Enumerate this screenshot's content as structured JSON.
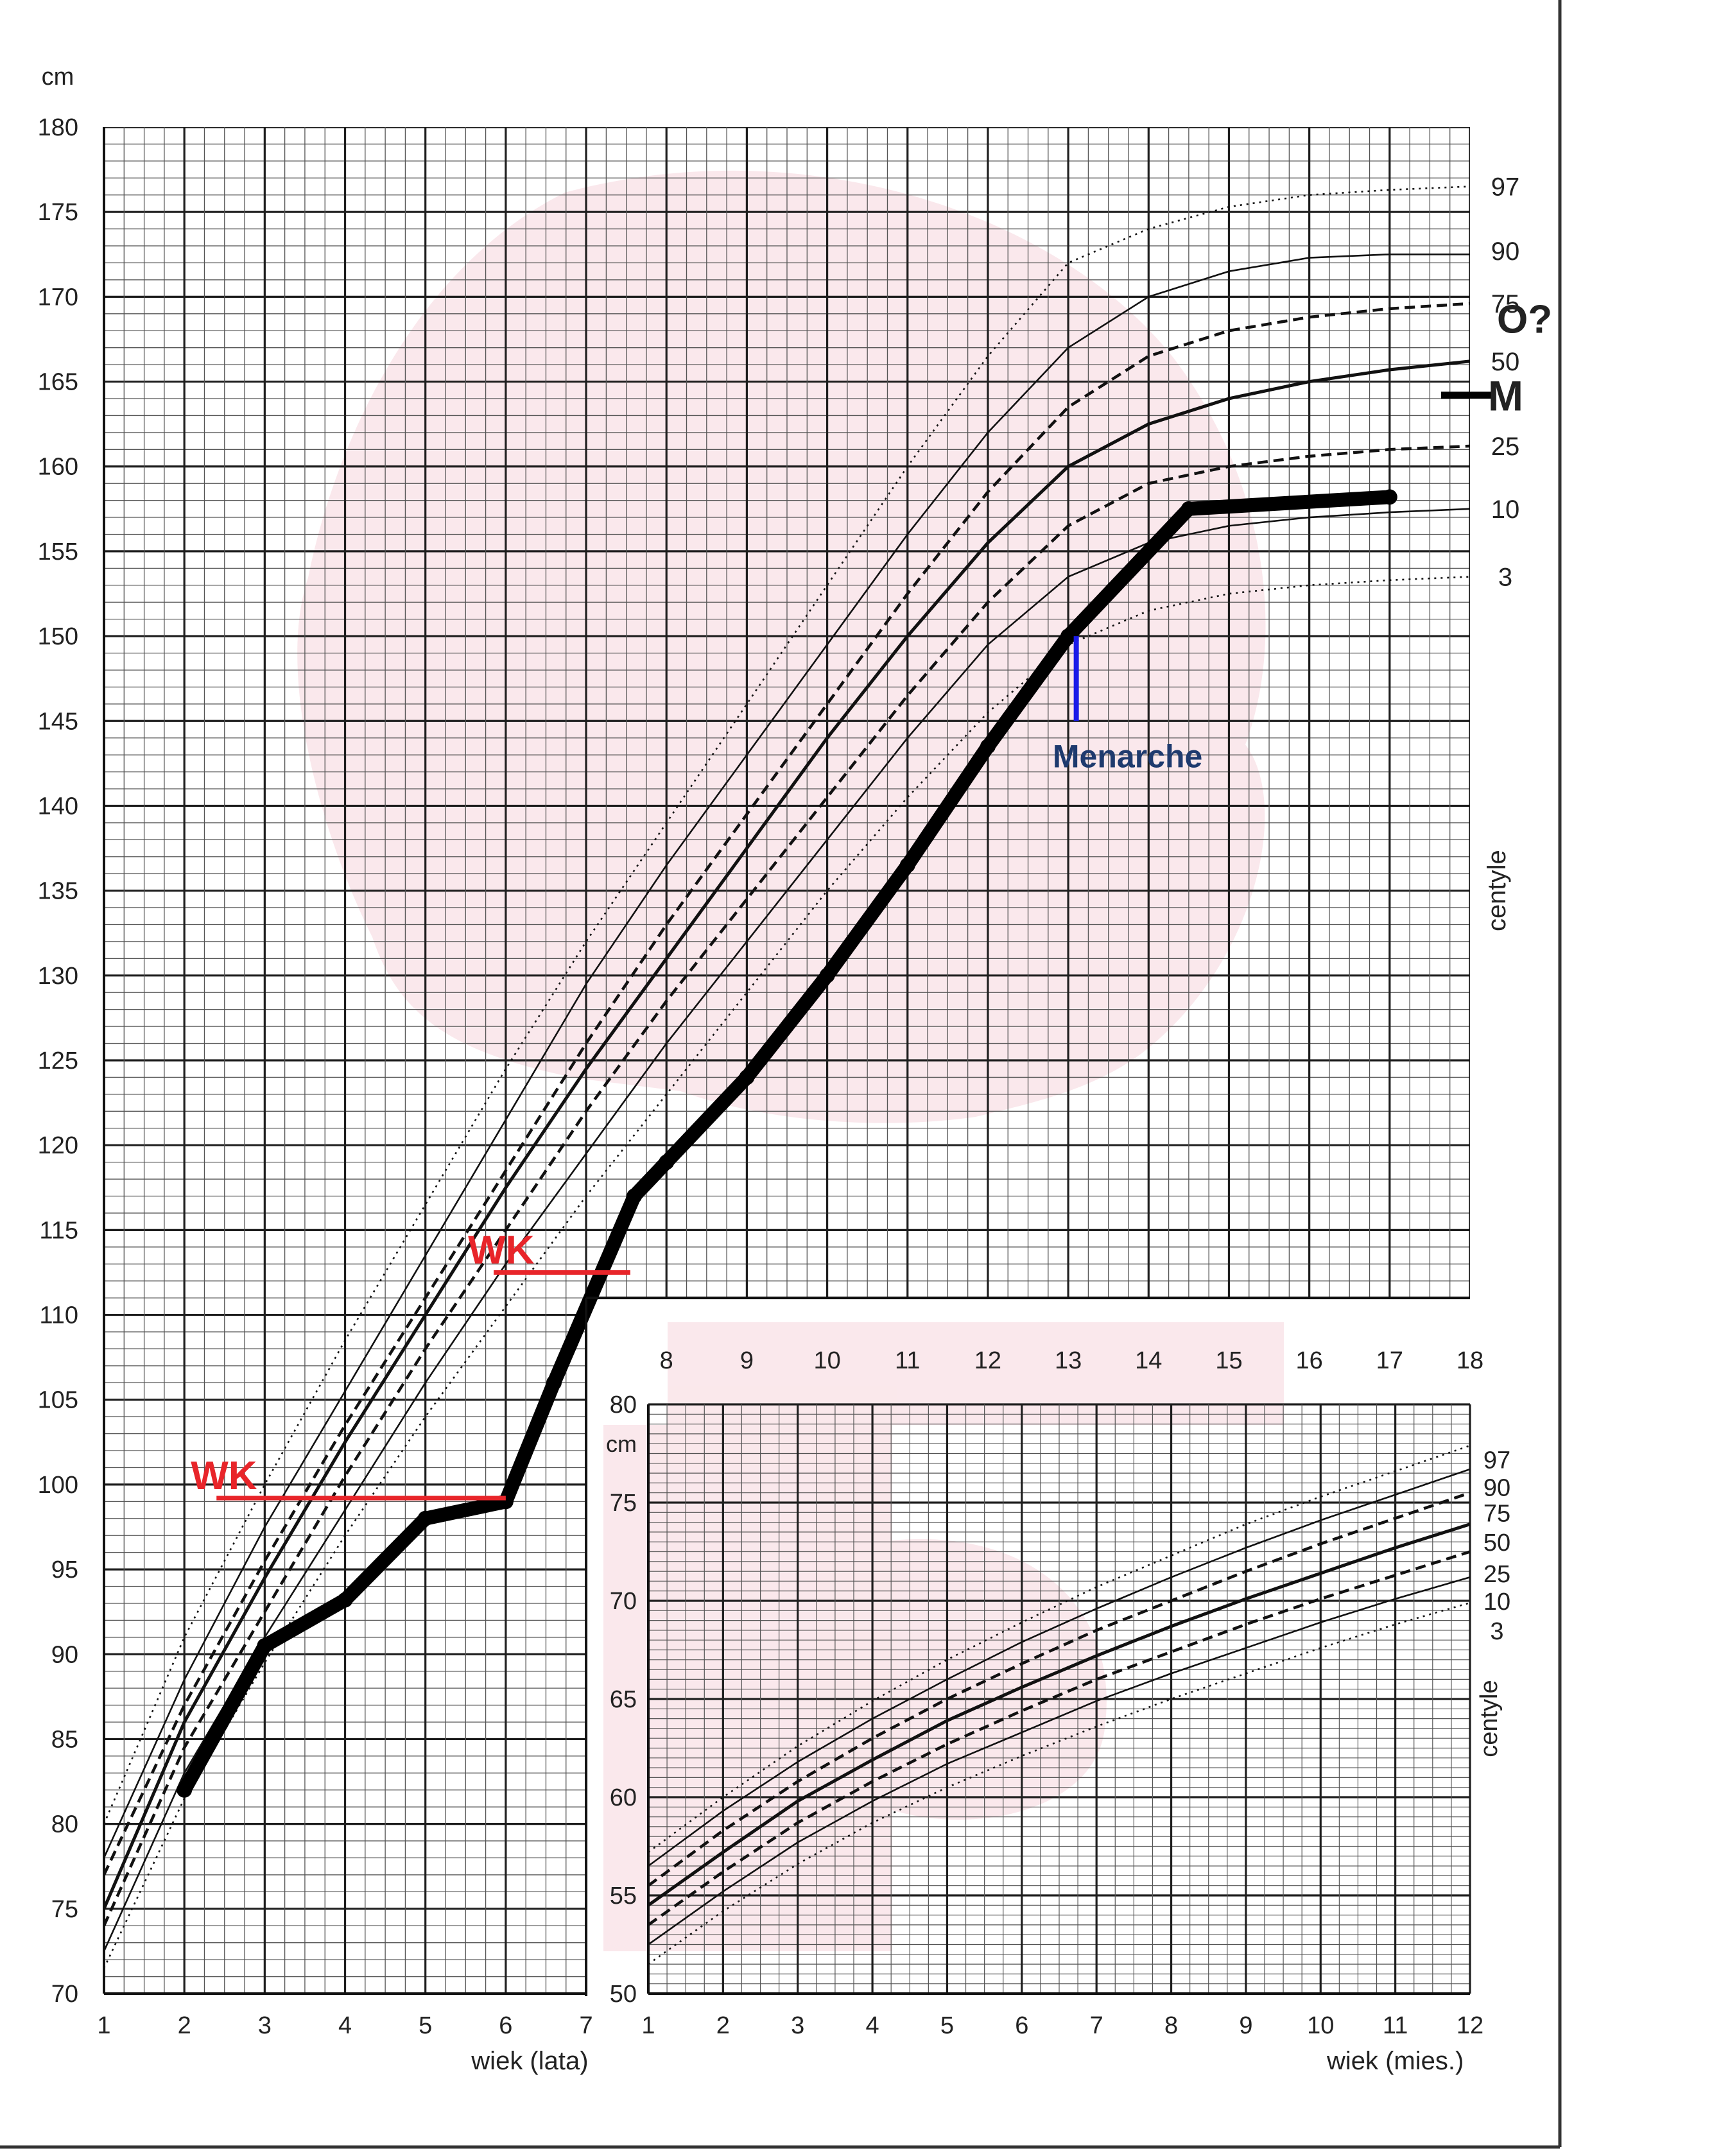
{
  "chart_data": [
    {
      "type": "line",
      "title": "",
      "ylabel": "cm",
      "xlabel": "wiek (lata)",
      "side_label": "centyle",
      "xlim": [
        1,
        18
      ],
      "ylim": [
        70,
        180
      ],
      "xticks": [
        "1",
        "2",
        "3",
        "4",
        "5",
        "6",
        "7",
        "8",
        "9",
        "10",
        "11",
        "12",
        "13",
        "14",
        "15",
        "16",
        "17",
        "18"
      ],
      "yticks": [
        "70",
        "75",
        "80",
        "85",
        "90",
        "95",
        "100",
        "105",
        "110",
        "115",
        "120",
        "125",
        "130",
        "135",
        "140",
        "145",
        "150",
        "155",
        "160",
        "165",
        "170",
        "175",
        "180"
      ],
      "grid": true,
      "centile_labels": [
        {
          "text": "97",
          "y": 176.5
        },
        {
          "text": "90",
          "y": 172.7
        },
        {
          "text": "75",
          "y": 169.6
        },
        {
          "text": "50",
          "y": 166.2
        },
        {
          "text": "25",
          "y": 161.2
        },
        {
          "text": "10",
          "y": 157.5
        },
        {
          "text": "3",
          "y": 153.5
        }
      ],
      "series": [
        {
          "centile": "97",
          "style": "dotted",
          "x": [
            1,
            2,
            3,
            4,
            5,
            6,
            7,
            8,
            9,
            10,
            11,
            12,
            13,
            14,
            15,
            16,
            17,
            18
          ],
          "y": [
            80,
            91,
            100,
            108.5,
            116.5,
            124.5,
            132,
            139,
            146,
            153,
            160,
            166.5,
            172,
            174,
            175.3,
            176,
            176.3,
            176.5
          ]
        },
        {
          "centile": "90",
          "style": "solid",
          "x": [
            1,
            2,
            3,
            4,
            5,
            6,
            7,
            8,
            9,
            10,
            11,
            12,
            13,
            14,
            15,
            16,
            17,
            18
          ],
          "y": [
            78,
            88.5,
            97.5,
            105.5,
            113.5,
            121.5,
            129.5,
            136.5,
            143,
            149.5,
            156,
            162,
            167,
            170,
            171.5,
            172.3,
            172.5,
            172.5
          ]
        },
        {
          "centile": "75",
          "style": "dashed",
          "x": [
            1,
            2,
            3,
            4,
            5,
            6,
            7,
            8,
            9,
            10,
            11,
            12,
            13,
            14,
            15,
            16,
            17,
            18
          ],
          "y": [
            77,
            87,
            95.5,
            103.5,
            111,
            118.5,
            126,
            133,
            139.5,
            146,
            152.5,
            158.5,
            163.5,
            166.5,
            168,
            168.8,
            169.3,
            169.6
          ]
        },
        {
          "centile": "50",
          "style": "solid-bold",
          "x": [
            1,
            2,
            3,
            4,
            5,
            6,
            7,
            8,
            9,
            10,
            11,
            12,
            13,
            14,
            15,
            16,
            17,
            18
          ],
          "y": [
            75,
            86,
            94.5,
            102.5,
            110,
            117.5,
            124.5,
            131,
            137.5,
            144,
            150,
            155.5,
            160,
            162.5,
            164,
            165,
            165.7,
            166.2
          ]
        },
        {
          "centile": "25",
          "style": "dashed",
          "x": [
            1,
            2,
            3,
            4,
            5,
            6,
            7,
            8,
            9,
            10,
            11,
            12,
            13,
            14,
            15,
            16,
            17,
            18
          ],
          "y": [
            74,
            84.5,
            92.5,
            100.5,
            108,
            115,
            122,
            128.5,
            134.5,
            140.5,
            146.5,
            152,
            156.5,
            159,
            160,
            160.6,
            161,
            161.2
          ]
        },
        {
          "centile": "10",
          "style": "solid",
          "x": [
            1,
            2,
            3,
            4,
            5,
            6,
            7,
            8,
            9,
            10,
            11,
            12,
            13,
            14,
            15,
            16,
            17,
            18
          ],
          "y": [
            72.5,
            83,
            91,
            98.5,
            106,
            113,
            119.5,
            126,
            132,
            138,
            144,
            149.5,
            153.5,
            155.5,
            156.5,
            157,
            157.3,
            157.5
          ]
        },
        {
          "centile": "3",
          "style": "dotted",
          "x": [
            1,
            2,
            3,
            4,
            5,
            6,
            7,
            8,
            9,
            10,
            11,
            12,
            13,
            14,
            15,
            16,
            17,
            18
          ],
          "y": [
            71.5,
            81.5,
            89.5,
            97,
            104,
            110.5,
            117,
            123,
            129,
            135,
            140.5,
            145.5,
            149.5,
            151.5,
            152.5,
            153,
            153.3,
            153.5
          ]
        },
        {
          "name": "patient",
          "style": "patient",
          "x": [
            2,
            3,
            4,
            5,
            6,
            6.6,
            7.6,
            8,
            9,
            10,
            11,
            12,
            13,
            14.5,
            17
          ],
          "y": [
            82,
            90.5,
            93.2,
            98,
            99,
            106,
            117,
            119,
            124,
            130,
            136.5,
            143.5,
            150,
            157.5,
            158.2
          ]
        }
      ],
      "annotations": {
        "wk": [
          {
            "text": "WK",
            "x_start": 2.4,
            "x_end": 6,
            "y": 99.2
          },
          {
            "text": "WK",
            "x_start": 5.85,
            "x_end": 7.55,
            "y": 112.5
          }
        ],
        "menarche": {
          "text": "Menarche",
          "x": 13.1,
          "y_from": 145,
          "y_to": 150
        },
        "parent_targets": [
          {
            "text": "O?",
            "y": 168.7
          },
          {
            "text": "M",
            "y": 164.2
          }
        ]
      }
    },
    {
      "type": "line",
      "title": "",
      "ylabel": "cm",
      "xlabel": "wiek (mies.)",
      "side_label": "centyle",
      "xlim": [
        1,
        12
      ],
      "ylim": [
        50,
        80
      ],
      "xticks": [
        "1",
        "2",
        "3",
        "4",
        "5",
        "6",
        "7",
        "8",
        "9",
        "10",
        "11",
        "12"
      ],
      "yticks": [
        "50",
        "55",
        "60",
        "65",
        "70",
        "75",
        "80"
      ],
      "grid": true,
      "centile_labels": [
        {
          "text": "97",
          "y": 77.2
        },
        {
          "text": "90",
          "y": 75.8
        },
        {
          "text": "75",
          "y": 74.5
        },
        {
          "text": "50",
          "y": 73.0
        },
        {
          "text": "25",
          "y": 71.4
        },
        {
          "text": "10",
          "y": 70.0
        },
        {
          "text": "3",
          "y": 68.5
        }
      ],
      "series": [
        {
          "centile": "97",
          "style": "dotted",
          "x": [
            1,
            2,
            3,
            4,
            5,
            6,
            7,
            8,
            9,
            10,
            11,
            12
          ],
          "y": [
            57.2,
            60.0,
            62.6,
            64.9,
            67.0,
            68.9,
            70.7,
            72.3,
            73.9,
            75.3,
            76.6,
            77.9
          ]
        },
        {
          "centile": "90",
          "style": "solid",
          "x": [
            1,
            2,
            3,
            4,
            5,
            6,
            7,
            8,
            9,
            10,
            11,
            12
          ],
          "y": [
            56.5,
            59.3,
            61.8,
            64.0,
            66.0,
            67.9,
            69.6,
            71.2,
            72.7,
            74.1,
            75.4,
            76.7
          ]
        },
        {
          "centile": "75",
          "style": "dashed",
          "x": [
            1,
            2,
            3,
            4,
            5,
            6,
            7,
            8,
            9,
            10,
            11,
            12
          ],
          "y": [
            55.5,
            58.3,
            60.8,
            63.0,
            65.0,
            66.8,
            68.5,
            70.0,
            71.5,
            72.9,
            74.2,
            75.5
          ]
        },
        {
          "centile": "50",
          "style": "solid-bold",
          "x": [
            1,
            2,
            3,
            4,
            5,
            6,
            7,
            8,
            9,
            10,
            11,
            12
          ],
          "y": [
            54.5,
            57.2,
            59.8,
            61.9,
            63.9,
            65.6,
            67.2,
            68.7,
            70.1,
            71.4,
            72.7,
            73.9
          ]
        },
        {
          "centile": "25",
          "style": "dashed",
          "x": [
            1,
            2,
            3,
            4,
            5,
            6,
            7,
            8,
            9,
            10,
            11,
            12
          ],
          "y": [
            53.5,
            56.2,
            58.7,
            60.8,
            62.7,
            64.4,
            66.0,
            67.4,
            68.8,
            70.1,
            71.3,
            72.5
          ]
        },
        {
          "centile": "10",
          "style": "solid",
          "x": [
            1,
            2,
            3,
            4,
            5,
            6,
            7,
            8,
            9,
            10,
            11,
            12
          ],
          "y": [
            52.5,
            55.2,
            57.7,
            59.8,
            61.7,
            63.3,
            64.9,
            66.3,
            67.6,
            68.9,
            70.1,
            71.2
          ]
        },
        {
          "centile": "3",
          "style": "dotted",
          "x": [
            1,
            2,
            3,
            4,
            5,
            6,
            7,
            8,
            9,
            10,
            11,
            12
          ],
          "y": [
            51.5,
            54.2,
            56.6,
            58.7,
            60.5,
            62.1,
            63.6,
            65.0,
            66.3,
            67.6,
            68.8,
            69.9
          ]
        }
      ]
    }
  ]
}
